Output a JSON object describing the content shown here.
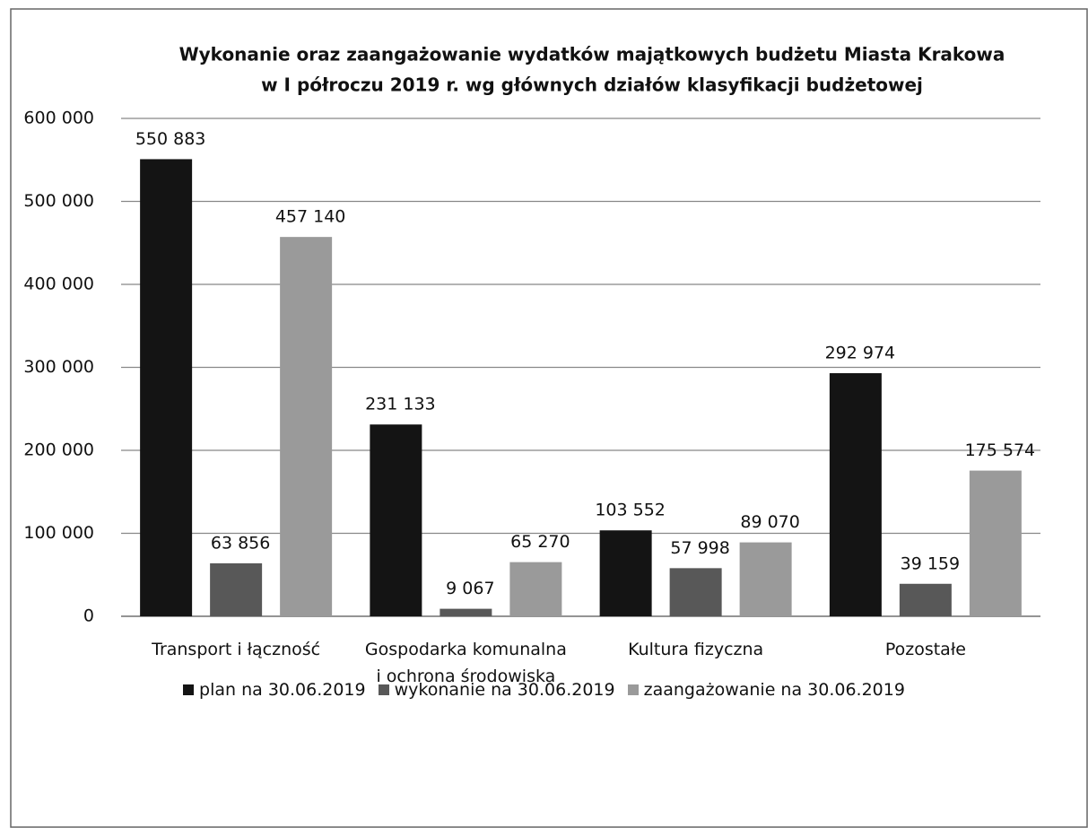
{
  "chart_data": {
    "type": "bar",
    "title": [
      "Wykonanie oraz zaangażowanie wydatków majątkowych budżetu Miasta Krakowa",
      "w I półroczu 2019 r. wg głównych działów klasyfikacji budżetowej"
    ],
    "categories": [
      "Transport i łączność",
      "Gospodarka komunalna i ochrona środowiska",
      "Kultura fizyczna",
      "Pozostałe"
    ],
    "series": [
      {
        "name": "plan na 30.06.2019",
        "color": "#141414",
        "values": [
          550883,
          231133,
          103552,
          292974
        ],
        "value_labels": [
          "550 883",
          "231 133",
          "103 552",
          "292 974"
        ]
      },
      {
        "name": "wykonanie na 30.06.2019",
        "color": "#585858",
        "values": [
          63856,
          9067,
          57998,
          39159
        ],
        "value_labels": [
          "63 856",
          "9 067",
          "57 998",
          "39 159"
        ]
      },
      {
        "name": "zaangażowanie na 30.06.2019",
        "color": "#9a9a9a",
        "values": [
          457140,
          65270,
          89070,
          175574
        ],
        "value_labels": [
          "457 140",
          "65 270",
          "89 070",
          "175 574"
        ]
      }
    ],
    "ylim": [
      0,
      600000
    ],
    "yticks": [
      0,
      {
        "value": 100000,
        "label": "100 000"
      },
      {
        "value": 200000,
        "label": "200 000"
      },
      {
        "value": 300000,
        "label": "300 000"
      },
      {
        "value": 400000,
        "label": "400 000"
      },
      {
        "value": 500000,
        "label": "500 000"
      },
      {
        "value": 600000,
        "label": "600 000"
      }
    ],
    "grid": true,
    "legend": "bottom"
  }
}
